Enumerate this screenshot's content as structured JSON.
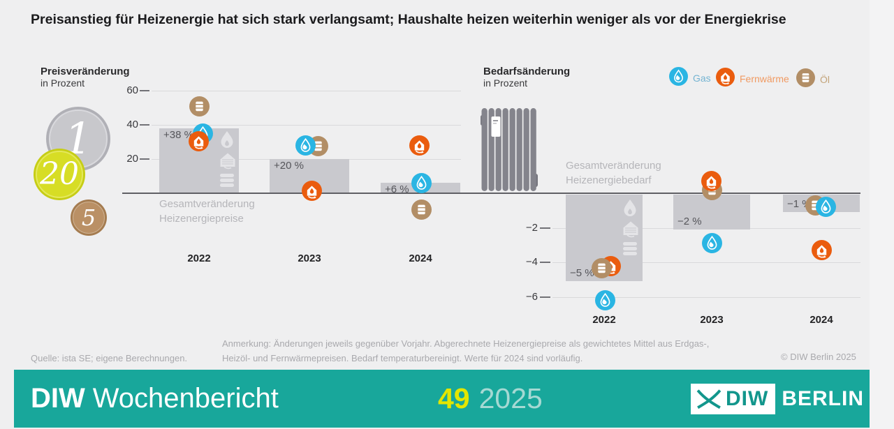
{
  "title": "Preisanstieg für Heizenergie hat sich stark verlangsamt; Haushalte heizen weiterhin weniger als vor der Energiekrise",
  "coins": [
    {
      "value": "1"
    },
    {
      "value": "20"
    },
    {
      "value": "5"
    }
  ],
  "legend": {
    "items": [
      {
        "label": "Gas",
        "icon": "gas-icon",
        "color": "#2ab5e3"
      },
      {
        "label": "Fernwärme",
        "icon": "district-heating-icon",
        "color": "#ea5c0e"
      },
      {
        "label": "Öl",
        "icon": "oil-icon",
        "color": "#b28e66"
      }
    ]
  },
  "chart_data": [
    {
      "id": "price",
      "type": "bar",
      "title": "Preisveränderung",
      "subtitle": "in Prozent",
      "categories": [
        "2022",
        "2023",
        "2024"
      ],
      "yticks": [
        60,
        40,
        20
      ],
      "ylim": [
        0,
        65
      ],
      "grid": true,
      "bar_series": {
        "name": "Gesamtveränderung Heizenergiepreise",
        "values": [
          38,
          20,
          6
        ],
        "labels": [
          "+38 %",
          "+20 %",
          "+6 %"
        ]
      },
      "marker_series": [
        {
          "name": "Gas",
          "values": [
            35,
            28,
            6
          ]
        },
        {
          "name": "Fernwärme",
          "values": [
            30.5,
            1.5,
            28
          ]
        },
        {
          "name": "Öl",
          "values": [
            51,
            27.5,
            -9.5
          ]
        }
      ],
      "annotation_line1": "Gesamtveränderung",
      "annotation_line2": "Heizenergiepreise"
    },
    {
      "id": "demand",
      "type": "bar",
      "title": "Bedarfsänderung",
      "subtitle": "in Prozent",
      "categories": [
        "2022",
        "2023",
        "2024"
      ],
      "yticks": [
        -2,
        -4,
        -6
      ],
      "ylim": [
        -6.5,
        0
      ],
      "grid": true,
      "bar_series": {
        "name": "Gesamtveränderung Heizenergiebedarf",
        "values": [
          -5,
          -2,
          -1
        ],
        "labels": [
          "−5 %",
          "−2 %",
          "−1 %"
        ]
      },
      "marker_series": [
        {
          "name": "Gas",
          "values": [
            -6.2,
            -2.9,
            -0.8
          ]
        },
        {
          "name": "Fernwärme",
          "values": [
            -4.2,
            0.7,
            -3.3
          ]
        },
        {
          "name": "Öl",
          "values": [
            -4.35,
            0.2,
            -0.7
          ]
        }
      ],
      "annotation_line1": "Gesamtveränderung",
      "annotation_line2": "Heizenergiebedarf"
    }
  ],
  "footer": {
    "source": "Quelle: ista SE; eigene Berechnungen.",
    "note": "Anmerkung: Änderungen jeweils gegenüber Vorjahr. Abgerechnete Heizenergiepreise als gewichtetes Mittel aus Erdgas-, Heizöl- und Fernwärmepreisen. Bedarf temperaturbereinigt. Werte für 2024 sind vorläufig.",
    "copyright": "© DIW Berlin 2025"
  },
  "banner": {
    "brand_bold": "DIW",
    "brand_light": "Wochenbericht",
    "issue": "49",
    "year": "2025",
    "logo_diw": "DIW",
    "logo_berlin": "BERLIN"
  },
  "colors": {
    "gas": "#2ab5e3",
    "fernwaerme": "#ea5c0e",
    "oel": "#b28e66",
    "bar_gray": "#c9c9ce",
    "banner_teal": "#18a79b",
    "issue_yellow": "#e3e600"
  }
}
